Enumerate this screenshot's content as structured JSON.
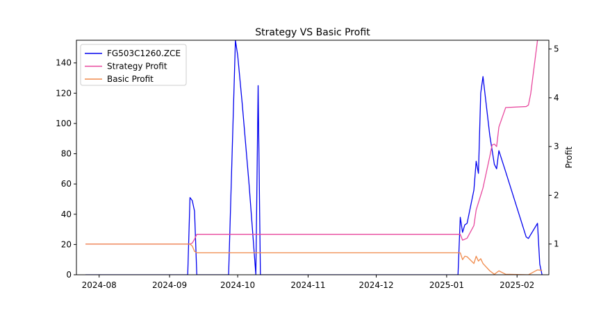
{
  "chart_data": {
    "type": "line",
    "title": "Strategy VS Basic Profit",
    "xlabel": "",
    "ylabel_left": "",
    "ylabel_right": "Profit",
    "x_ticks": [
      "2024-08",
      "2024-09",
      "2024-10",
      "2024-11",
      "2024-12",
      "2025-01",
      "2025-02"
    ],
    "x_tick_dates": [
      "2024-08-01",
      "2024-09-01",
      "2024-10-01",
      "2024-11-01",
      "2024-12-01",
      "2025-01-01",
      "2025-02-01"
    ],
    "xlim": [
      "2024-07-22",
      "2025-02-15"
    ],
    "y_left_ticks": [
      0,
      20,
      40,
      60,
      80,
      100,
      120,
      140
    ],
    "y_left_lim": [
      0,
      155
    ],
    "y_right_ticks": [
      1,
      2,
      3,
      4,
      5
    ],
    "y_right_lim": [
      0.37,
      5.18
    ],
    "grid": false,
    "legend": {
      "placement": "top-left",
      "entries": [
        {
          "name": "FG503C1260.ZCE",
          "color": "#0000ee"
        },
        {
          "name": "Strategy Profit",
          "color": "#e8489e"
        },
        {
          "name": "Basic Profit",
          "color": "#f08a4b"
        }
      ]
    },
    "series": [
      {
        "name": "FG503C1260.ZCE",
        "axis": "left",
        "color": "#0000ee",
        "points": [
          [
            "2024-07-26",
            0
          ],
          [
            "2024-09-09",
            0
          ],
          [
            "2024-09-10",
            51
          ],
          [
            "2024-09-11",
            49
          ],
          [
            "2024-09-12",
            42
          ],
          [
            "2024-09-13",
            0
          ],
          [
            "2024-09-27",
            0
          ],
          [
            "2024-09-30",
            155
          ],
          [
            "2024-10-01",
            145
          ],
          [
            "2024-10-03",
            113
          ],
          [
            "2024-10-06",
            60
          ],
          [
            "2024-10-08",
            20
          ],
          [
            "2024-10-09",
            0
          ],
          [
            "2024-10-10",
            125
          ],
          [
            "2024-10-11",
            0
          ],
          [
            "2025-01-06",
            0
          ],
          [
            "2025-01-07",
            38
          ],
          [
            "2025-01-08",
            28
          ],
          [
            "2025-01-09",
            33
          ],
          [
            "2025-01-10",
            34
          ],
          [
            "2025-01-13",
            56
          ],
          [
            "2025-01-14",
            75
          ],
          [
            "2025-01-15",
            67
          ],
          [
            "2025-01-16",
            120
          ],
          [
            "2025-01-17",
            131
          ],
          [
            "2025-01-20",
            92
          ],
          [
            "2025-01-22",
            73
          ],
          [
            "2025-01-23",
            70
          ],
          [
            "2025-01-24",
            82
          ],
          [
            "2025-01-27",
            68
          ],
          [
            "2025-02-05",
            25
          ],
          [
            "2025-02-06",
            24
          ],
          [
            "2025-02-10",
            34
          ],
          [
            "2025-02-11",
            7
          ],
          [
            "2025-02-12",
            0
          ]
        ]
      },
      {
        "name": "Strategy Profit",
        "axis": "right",
        "color": "#e8489e",
        "points": [
          [
            "2024-07-26",
            1.0
          ],
          [
            "2024-09-10",
            1.0
          ],
          [
            "2024-09-11",
            1.02
          ],
          [
            "2024-09-12",
            1.1
          ],
          [
            "2024-09-13",
            1.2
          ],
          [
            "2025-01-07",
            1.2
          ],
          [
            "2025-01-08",
            1.08
          ],
          [
            "2025-01-10",
            1.12
          ],
          [
            "2025-01-13",
            1.38
          ],
          [
            "2025-01-14",
            1.7
          ],
          [
            "2025-01-15",
            1.85
          ],
          [
            "2025-01-17",
            2.15
          ],
          [
            "2025-01-20",
            2.8
          ],
          [
            "2025-01-21",
            3.03
          ],
          [
            "2025-01-22",
            3.05
          ],
          [
            "2025-01-23",
            3.0
          ],
          [
            "2025-01-24",
            3.4
          ],
          [
            "2025-01-27",
            3.8
          ],
          [
            "2025-02-05",
            3.82
          ],
          [
            "2025-02-06",
            3.85
          ],
          [
            "2025-02-07",
            4.08
          ],
          [
            "2025-02-10",
            5.18
          ]
        ]
      },
      {
        "name": "Basic Profit",
        "axis": "right",
        "color": "#f08a4b",
        "points": [
          [
            "2024-07-26",
            1.0
          ],
          [
            "2024-09-10",
            1.0
          ],
          [
            "2024-09-11",
            0.96
          ],
          [
            "2024-09-12",
            0.85
          ],
          [
            "2024-09-13",
            0.82
          ],
          [
            "2025-01-07",
            0.82
          ],
          [
            "2025-01-08",
            0.68
          ],
          [
            "2025-01-09",
            0.75
          ],
          [
            "2025-01-10",
            0.74
          ],
          [
            "2025-01-13",
            0.6
          ],
          [
            "2025-01-14",
            0.75
          ],
          [
            "2025-01-15",
            0.65
          ],
          [
            "2025-01-16",
            0.7
          ],
          [
            "2025-01-17",
            0.6
          ],
          [
            "2025-01-20",
            0.45
          ],
          [
            "2025-01-22",
            0.38
          ],
          [
            "2025-01-24",
            0.45
          ],
          [
            "2025-01-27",
            0.38
          ],
          [
            "2025-02-06",
            0.37
          ],
          [
            "2025-02-10",
            0.47
          ],
          [
            "2025-02-12",
            0.46
          ]
        ]
      }
    ]
  }
}
